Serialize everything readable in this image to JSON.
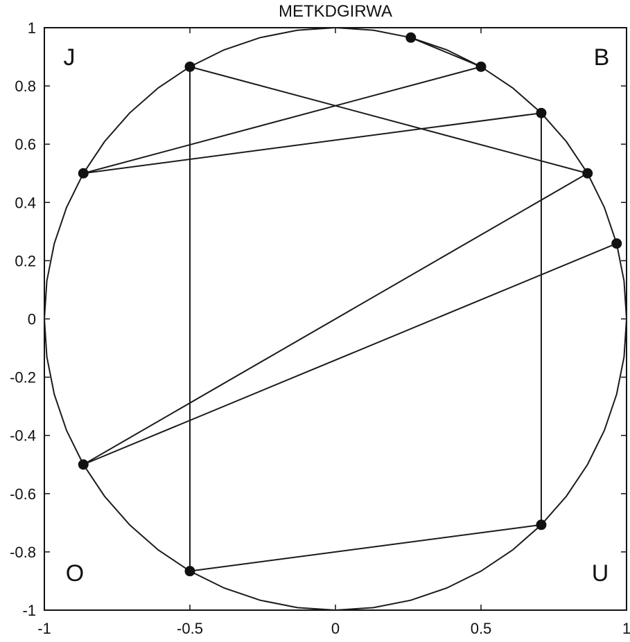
{
  "chart_data": {
    "type": "line",
    "title": "METKDGIRWA",
    "xlabel": "",
    "ylabel": "",
    "xlim": [
      -1,
      1
    ],
    "ylim": [
      -1,
      1
    ],
    "grid": false,
    "x_ticks": [
      -1,
      -0.5,
      0,
      0.5,
      1
    ],
    "x_tick_labels": [
      "-1",
      "-0.5",
      "0",
      "0.5",
      "1"
    ],
    "y_ticks": [
      1,
      0.8,
      0.6,
      0.4,
      0.2,
      0,
      -0.2,
      -0.4,
      -0.6,
      -0.8,
      -1
    ],
    "y_tick_labels": [
      "1",
      "0.8",
      "0.6",
      "0.4",
      "0.2",
      "0",
      "-0.2",
      "-0.4",
      "-0.6",
      "-0.8",
      "-1"
    ],
    "circle": {
      "center": [
        0,
        0
      ],
      "radius": 1,
      "polygon_sides": 48
    },
    "corner_labels": [
      {
        "text": "J",
        "position": "top-left"
      },
      {
        "text": "B",
        "position": "top-right"
      },
      {
        "text": "O",
        "position": "bottom-left"
      },
      {
        "text": "U",
        "position": "bottom-right"
      }
    ],
    "points": [
      {
        "x": 0.259,
        "y": 0.966
      },
      {
        "x": 0.5,
        "y": 0.866
      },
      {
        "x": -0.866,
        "y": 0.5
      },
      {
        "x": 0.707,
        "y": 0.707
      },
      {
        "x": 0.707,
        "y": -0.707
      },
      {
        "x": -0.5,
        "y": -0.866
      },
      {
        "x": -0.5,
        "y": 0.866
      },
      {
        "x": 0.866,
        "y": 0.5
      },
      {
        "x": -0.866,
        "y": -0.5
      },
      {
        "x": 0.966,
        "y": 0.259
      }
    ],
    "path_order": [
      0,
      1,
      2,
      3,
      4,
      5,
      6,
      7,
      8,
      9
    ],
    "colors": {
      "line": "#1a1a1a",
      "marker": "#111111",
      "axes": "#111111",
      "background": "#ffffff"
    }
  }
}
